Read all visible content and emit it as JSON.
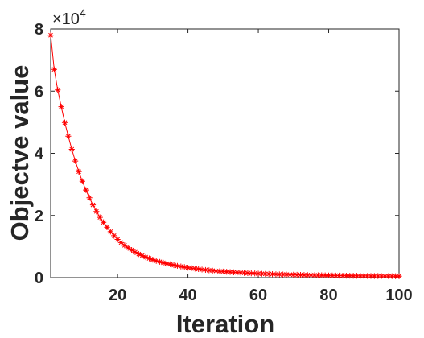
{
  "chart_data": {
    "type": "line",
    "title": "",
    "xlabel": "Iteration",
    "ylabel": "Objectve value",
    "xlim": [
      1,
      100
    ],
    "ylim": [
      0,
      80000
    ],
    "y_exponent_base": "×10",
    "y_exponent_power": "4",
    "x_ticks": [
      20,
      40,
      60,
      80,
      100
    ],
    "x_tick_labels": [
      "20",
      "40",
      "60",
      "80",
      "100"
    ],
    "y_ticks": [
      0,
      20000,
      40000,
      60000,
      80000
    ],
    "y_tick_labels": [
      "0",
      "2",
      "4",
      "6",
      "8"
    ],
    "grid": false,
    "marker": "*",
    "series": [
      {
        "color": "#ff0000",
        "x": [
          1,
          2,
          3,
          4,
          5,
          6,
          7,
          8,
          9,
          10,
          11,
          12,
          13,
          14,
          15,
          16,
          17,
          18,
          19,
          20,
          21,
          22,
          23,
          24,
          25,
          26,
          27,
          28,
          29,
          30,
          31,
          32,
          33,
          34,
          35,
          36,
          37,
          38,
          39,
          40,
          41,
          42,
          43,
          44,
          45,
          46,
          47,
          48,
          49,
          50,
          51,
          52,
          53,
          54,
          55,
          56,
          57,
          58,
          59,
          60,
          61,
          62,
          63,
          64,
          65,
          66,
          67,
          68,
          69,
          70,
          71,
          72,
          73,
          74,
          75,
          76,
          77,
          78,
          79,
          80,
          81,
          82,
          83,
          84,
          85,
          86,
          87,
          88,
          89,
          90,
          91,
          92,
          93,
          94,
          95,
          96,
          97,
          98,
          99,
          100
        ],
        "y": [
          78000,
          67000,
          60400,
          55000,
          49900,
          45500,
          41300,
          37500,
          34100,
          31000,
          28200,
          25700,
          23400,
          21300,
          19400,
          17800,
          16200,
          14800,
          13500,
          12300,
          11300,
          10400,
          9600,
          8900,
          8200,
          7600,
          7100,
          6600,
          6200,
          5800,
          5400,
          5100,
          4800,
          4500,
          4300,
          4000,
          3800,
          3600,
          3400,
          3200,
          3050,
          2900,
          2750,
          2600,
          2480,
          2360,
          2250,
          2150,
          2050,
          1960,
          1880,
          1800,
          1720,
          1650,
          1580,
          1520,
          1460,
          1400,
          1350,
          1300,
          1250,
          1210,
          1170,
          1130,
          1090,
          1050,
          1020,
          990,
          960,
          930,
          900,
          875,
          850,
          825,
          800,
          780,
          760,
          740,
          720,
          700,
          680,
          665,
          650,
          635,
          620,
          605,
          590,
          575,
          560,
          550,
          540,
          530,
          520,
          510,
          500,
          490,
          480,
          470,
          460,
          450
        ]
      }
    ]
  }
}
